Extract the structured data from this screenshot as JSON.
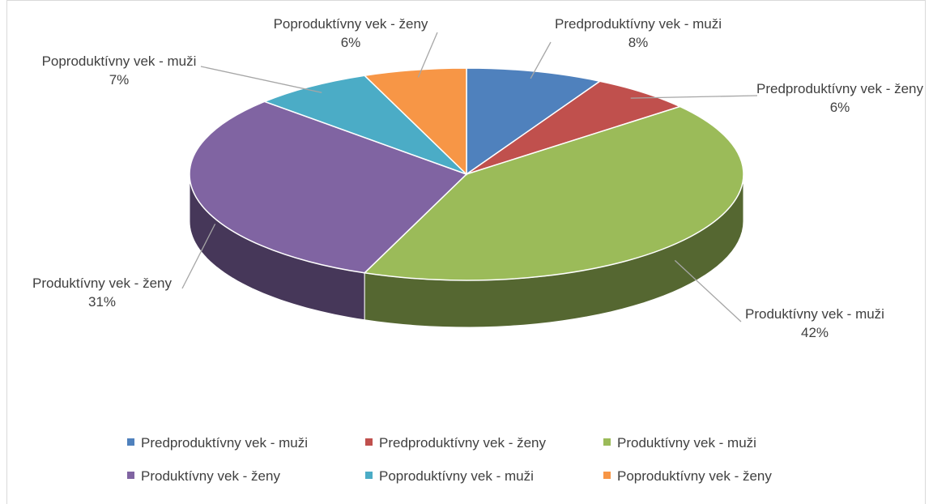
{
  "chart_data": {
    "type": "pie3d",
    "categories": [
      "Predproduktívny vek - muži",
      "Predproduktívny vek - ženy",
      "Produktívny vek - muži",
      "Produktívny vek - ženy",
      "Poproduktívny vek - muži",
      "Poproduktívny vek - ženy"
    ],
    "values": [
      8,
      6,
      42,
      31,
      7,
      6
    ],
    "value_labels": [
      "8%",
      "6%",
      "42%",
      "31%",
      "7%",
      "6%"
    ],
    "colors": [
      "#4f81bd",
      "#c0504d",
      "#9bbb59",
      "#8064a2",
      "#4bacc6",
      "#f79646"
    ],
    "legend": "bottom"
  }
}
